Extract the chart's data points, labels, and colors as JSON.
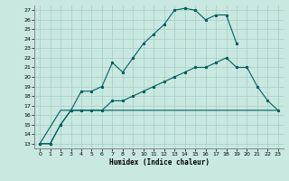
{
  "xlabel": "Humidex (Indice chaleur)",
  "ylabel": "",
  "xlim": [
    -0.5,
    23.5
  ],
  "ylim": [
    12.5,
    27.5
  ],
  "yticks": [
    13,
    14,
    15,
    16,
    17,
    18,
    19,
    20,
    21,
    22,
    23,
    24,
    25,
    26,
    27
  ],
  "xticks": [
    0,
    1,
    2,
    3,
    4,
    5,
    6,
    7,
    8,
    9,
    10,
    11,
    12,
    13,
    14,
    15,
    16,
    17,
    18,
    19,
    20,
    21,
    22,
    23
  ],
  "background_color": "#c8e8e0",
  "grid_color": "#a8ccc4",
  "line_color": "#006060",
  "line1_x": [
    0,
    1,
    2,
    3,
    4,
    5,
    6,
    7,
    8,
    9,
    10,
    11,
    12,
    13,
    14,
    15,
    16,
    17,
    18,
    19
  ],
  "line1_y": [
    13,
    13,
    15,
    16.5,
    18.5,
    18.5,
    19,
    21.5,
    20.5,
    22.0,
    23.5,
    24.5,
    25.5,
    27.0,
    27.2,
    27.0,
    26.0,
    26.5,
    26.5,
    23.5
  ],
  "line2_x": [
    0,
    1,
    2,
    3,
    4,
    5,
    6,
    7,
    8,
    9,
    10,
    11,
    12,
    13,
    14,
    15,
    16,
    17,
    18,
    19,
    20,
    21,
    22,
    23
  ],
  "line2_y": [
    13,
    13,
    15,
    16.5,
    16.5,
    16.5,
    16.5,
    17.5,
    17.5,
    18.0,
    18.5,
    19.0,
    19.5,
    20.0,
    20.5,
    21.0,
    21.0,
    21.5,
    22.0,
    21.0,
    21.0,
    19.0,
    17.5,
    16.5
  ],
  "line3_x": [
    0,
    2,
    3,
    23
  ],
  "line3_y": [
    13,
    16.5,
    16.5,
    16.5
  ]
}
